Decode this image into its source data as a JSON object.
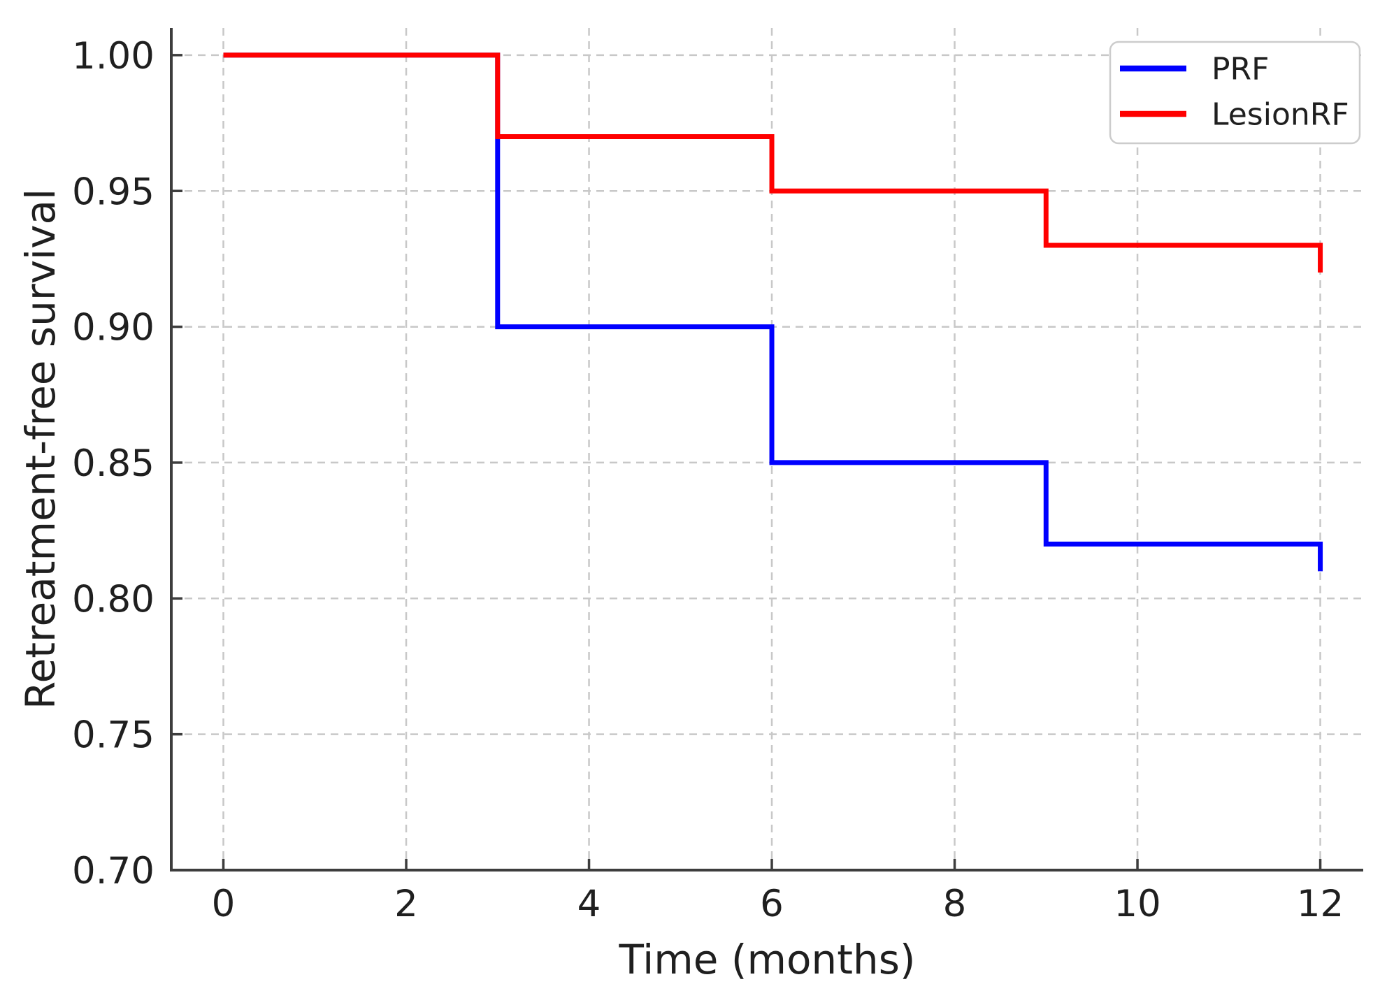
{
  "chart_data": {
    "type": "line",
    "subtype": "step-post",
    "title": "",
    "xlabel": "Time (months)",
    "ylabel": "Retreatment-free survival",
    "xlim": [
      -0.57,
      12.47
    ],
    "ylim": [
      0.7,
      1.01
    ],
    "xticks": [
      0,
      2,
      4,
      6,
      8,
      10,
      12
    ],
    "xtick_labels": [
      "0",
      "2",
      "4",
      "6",
      "8",
      "10",
      "12"
    ],
    "yticks": [
      0.7,
      0.75,
      0.8,
      0.85,
      0.9,
      0.95,
      1.0
    ],
    "ytick_labels": [
      "0.70",
      "0.75",
      "0.80",
      "0.85",
      "0.90",
      "0.95",
      "1.00"
    ],
    "grid": true,
    "grid_style": "dashed",
    "legend": {
      "position": "upper right",
      "entries": [
        "PRF",
        "LesionRF"
      ]
    },
    "series": [
      {
        "name": "PRF",
        "color": "#0000ff",
        "x": [
          0,
          3,
          6,
          9,
          12
        ],
        "y": [
          1.0,
          0.9,
          0.85,
          0.82,
          0.81
        ]
      },
      {
        "name": "LesionRF",
        "color": "#ff0000",
        "x": [
          0,
          3,
          6,
          9,
          12
        ],
        "y": [
          1.0,
          0.97,
          0.95,
          0.93,
          0.92
        ]
      }
    ],
    "colors": {
      "background": "#ffffff",
      "grid": "#c8c8c8",
      "axis": "#3d3d3d",
      "text": "#1f1f1f",
      "legend_border": "#cccccc"
    }
  }
}
